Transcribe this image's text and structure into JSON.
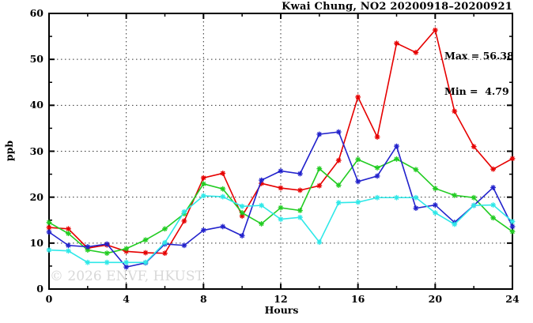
{
  "title": "Kwai Chung, NO2 20200918–20200921",
  "annotation": {
    "max_label": "Max = 56.38",
    "min_label": "Min =  4.79"
  },
  "watermark": "© 2026 ENVF, HKUST",
  "chart_data": {
    "type": "line",
    "title": "Kwai Chung, NO2 20200918–20200921",
    "xlabel": "Hours",
    "ylabel": "ppb",
    "max_value": 56.38,
    "min_value": 4.79,
    "grid": "dotted lines at major ticks, on",
    "legend_position": "none",
    "x_axis": {
      "min": 0,
      "max": 24,
      "major_ticks": [
        0,
        4,
        8,
        12,
        16,
        20,
        24
      ],
      "minor_ticks": [
        2,
        6,
        10,
        14,
        18,
        22
      ]
    },
    "y_axis": {
      "min": 0,
      "max": 60,
      "major_ticks": [
        0,
        10,
        20,
        30,
        40,
        50,
        60
      ],
      "minor_ticks": [
        5,
        15,
        25,
        35,
        45,
        55
      ]
    },
    "x": [
      0,
      1,
      2,
      3,
      4,
      5,
      6,
      7,
      8,
      9,
      10,
      11,
      12,
      13,
      14,
      15,
      16,
      17,
      18,
      19,
      20,
      21,
      22,
      23,
      24
    ],
    "series": [
      {
        "name": "red-series",
        "color": "#e60000",
        "marker": "asterisk",
        "values": [
          13.4,
          13.1,
          8.9,
          9.6,
          8.2,
          7.9,
          7.8,
          14.8,
          24.2,
          25.2,
          15.9,
          23.0,
          22.0,
          21.5,
          22.5,
          28.0,
          41.8,
          33.1,
          53.5,
          51.5,
          56.38,
          38.7,
          31.0,
          26.1,
          28.4
        ]
      },
      {
        "name": "green-series",
        "color": "#22cc22",
        "marker": "asterisk",
        "values": [
          14.5,
          12.1,
          8.5,
          7.8,
          8.8,
          10.7,
          13.1,
          16.4,
          22.9,
          21.8,
          16.6,
          14.2,
          17.7,
          17.1,
          26.2,
          22.6,
          28.2,
          26.4,
          28.3,
          26.0,
          21.9,
          20.4,
          19.9,
          15.5,
          12.5
        ]
      },
      {
        "name": "blue-series",
        "color": "#2222cc",
        "marker": "asterisk",
        "values": [
          12.4,
          9.5,
          9.2,
          9.8,
          4.79,
          5.7,
          9.8,
          9.5,
          12.8,
          13.6,
          11.6,
          23.7,
          25.7,
          25.1,
          33.7,
          34.2,
          23.4,
          24.6,
          31.1,
          17.6,
          18.3,
          14.5,
          18.2,
          22.1,
          13.6
        ]
      },
      {
        "name": "cyan-series",
        "color": "#2ee8e8",
        "marker": "asterisk",
        "values": [
          8.5,
          8.3,
          5.8,
          5.8,
          5.8,
          5.8,
          10.1,
          16.8,
          20.3,
          20.1,
          18.0,
          18.2,
          15.2,
          15.6,
          10.2,
          18.8,
          18.9,
          19.9,
          19.9,
          19.9,
          16.6,
          14.1,
          18.2,
          18.3,
          14.7
        ]
      }
    ]
  },
  "colors": {
    "axis": "#000000",
    "grid": "#333333",
    "watermark": "#d8d8d8"
  }
}
